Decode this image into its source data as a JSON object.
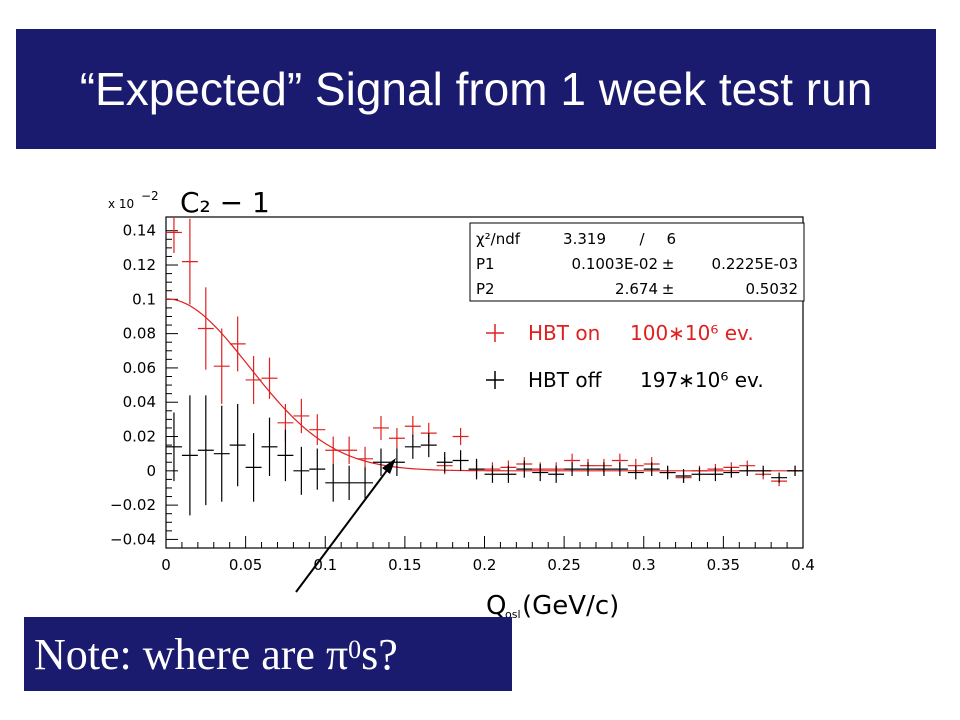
{
  "header": {
    "title": "“Expected” Signal from 1 week test run"
  },
  "note": {
    "text": "Note: where are π",
    "sup": "0",
    "tail": "s?"
  },
  "chart_data": {
    "type": "scatter",
    "title": "C₂ − 1",
    "y_multiplier": "x 10",
    "y_multiplier_exp": "−2",
    "xlabel": "Q",
    "xlabel_sub": "osl",
    "xlabel_unit": "(GeV/c)",
    "xlim": [
      0,
      0.4
    ],
    "ylim": [
      -0.045,
      0.148
    ],
    "x_ticks": [
      "0",
      "0.05",
      "0.1",
      "0.15",
      "0.2",
      "0.25",
      "0.3",
      "0.35",
      "0.4"
    ],
    "x_tick_values": [
      0,
      0.05,
      0.1,
      0.15,
      0.2,
      0.25,
      0.3,
      0.35,
      0.4
    ],
    "y_ticks": [
      "0.14",
      "0.12",
      "0.1",
      "0.08",
      "0.06",
      "0.04",
      "0.02",
      "0",
      "−0.02",
      "−0.04"
    ],
    "y_tick_values": [
      0.14,
      0.12,
      0.1,
      0.08,
      0.06,
      0.04,
      0.02,
      0,
      -0.02,
      -0.04
    ],
    "stats": [
      {
        "label": "χ²/ndf",
        "value": "3.319",
        "sep": "/",
        "err": "6"
      },
      {
        "label": "P1",
        "value": "0.1003E-02",
        "sep": "±",
        "err": "0.2225E-03"
      },
      {
        "label": "P2",
        "value": "2.674",
        "sep": "±",
        "err": "0.5032"
      }
    ],
    "fit": {
      "P1": 0.001003,
      "P2": 2.674,
      "color": "#e02020"
    },
    "series": [
      {
        "name": "HBT on",
        "legend_events": "100∗10⁶ ev.",
        "color": "#e02020",
        "x": [
          0.005,
          0.015,
          0.025,
          0.035,
          0.045,
          0.055,
          0.065,
          0.075,
          0.085,
          0.095,
          0.105,
          0.115,
          0.125,
          0.135,
          0.145,
          0.155,
          0.165,
          0.175,
          0.185,
          0.195,
          0.205,
          0.215,
          0.225,
          0.235,
          0.245,
          0.255,
          0.265,
          0.275,
          0.285,
          0.295,
          0.305,
          0.315,
          0.325,
          0.335,
          0.345,
          0.355,
          0.365,
          0.375,
          0.385,
          0.395
        ],
        "y": [
          0.139,
          0.122,
          0.083,
          0.061,
          0.074,
          0.053,
          0.054,
          0.028,
          0.032,
          0.024,
          0.012,
          0.012,
          0.007,
          0.025,
          0.019,
          0.026,
          0.022,
          0.003,
          0.02,
          0.001,
          0.001,
          0.002,
          0.004,
          0.001,
          0.001,
          0.006,
          0.003,
          0.003,
          0.006,
          0.003,
          0.004,
          -0.001,
          -0.004,
          0.0,
          0.001,
          0.002,
          0.003,
          -0.002,
          -0.006,
          0.0
        ],
        "err": [
          0.012,
          0.025,
          0.024,
          0.022,
          0.016,
          0.014,
          0.012,
          0.011,
          0.01,
          0.009,
          0.008,
          0.008,
          0.007,
          0.007,
          0.006,
          0.006,
          0.006,
          0.005,
          0.005,
          0.005,
          0.004,
          0.004,
          0.004,
          0.004,
          0.004,
          0.004,
          0.004,
          0.004,
          0.004,
          0.004,
          0.004,
          0.003,
          0.003,
          0.003,
          0.003,
          0.003,
          0.003,
          0.003,
          0.003,
          0.003
        ]
      },
      {
        "name": "HBT off",
        "legend_events": "197∗10⁶ ev.",
        "color": "#000000",
        "x": [
          0.005,
          0.015,
          0.025,
          0.035,
          0.045,
          0.055,
          0.065,
          0.075,
          0.085,
          0.095,
          0.105,
          0.115,
          0.125,
          0.135,
          0.145,
          0.155,
          0.165,
          0.175,
          0.185,
          0.195,
          0.205,
          0.215,
          0.225,
          0.235,
          0.245,
          0.255,
          0.265,
          0.275,
          0.285,
          0.295,
          0.305,
          0.315,
          0.325,
          0.335,
          0.345,
          0.355,
          0.365,
          0.375,
          0.385,
          0.395
        ],
        "y": [
          0.014,
          0.009,
          0.012,
          0.01,
          0.015,
          0.002,
          0.014,
          0.009,
          0.0,
          0.001,
          -0.007,
          -0.007,
          -0.007,
          0.005,
          0.005,
          0.014,
          0.015,
          0.005,
          0.006,
          0.001,
          -0.002,
          -0.002,
          0.001,
          -0.001,
          -0.002,
          0.001,
          0.001,
          0.001,
          0.001,
          -0.001,
          0.001,
          -0.001,
          -0.003,
          -0.002,
          -0.002,
          -0.001,
          0.0,
          0.0,
          -0.004,
          0.0
        ],
        "err": [
          0.02,
          0.035,
          0.032,
          0.028,
          0.024,
          0.02,
          0.017,
          0.015,
          0.014,
          0.012,
          0.011,
          0.01,
          0.009,
          0.008,
          0.008,
          0.007,
          0.007,
          0.006,
          0.006,
          0.006,
          0.005,
          0.005,
          0.005,
          0.005,
          0.005,
          0.004,
          0.004,
          0.004,
          0.004,
          0.004,
          0.004,
          0.004,
          0.004,
          0.004,
          0.004,
          0.003,
          0.003,
          0.003,
          0.003,
          0.003
        ]
      }
    ]
  }
}
